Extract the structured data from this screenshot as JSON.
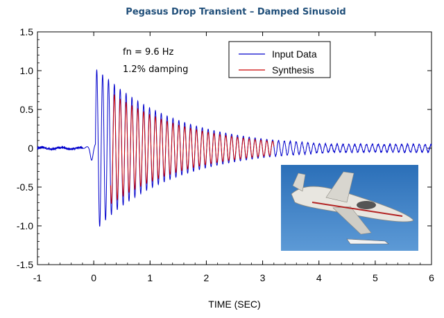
{
  "chart_data": {
    "type": "line",
    "title": "Pegasus Drop Transient – Damped Sinusoid",
    "xlabel": "TIME (SEC)",
    "ylabel": "",
    "xlim": [
      -1,
      6
    ],
    "ylim": [
      -1.5,
      1.5
    ],
    "x_ticks": [
      "-1",
      "0",
      "1",
      "2",
      "3",
      "4",
      "5",
      "6"
    ],
    "y_ticks": [
      "1.5",
      "1.0",
      "0.5",
      "0",
      "-0.5",
      "-1.0",
      "-1.5"
    ],
    "annotations": [
      "fn = 9.6 Hz",
      "1.2% damping"
    ],
    "series": [
      {
        "name": "Input Data",
        "color": "#0000cc",
        "description": "Measured drop transient: small noise before t=0, peak ~1.02 at t~0.1 s, min ~-1.08, decaying oscillation visible to t=6 s with residual amplitude ~0.05",
        "noise_level": 0.015,
        "peak": 1.02,
        "trough": -1.08,
        "residual_amplitude": 0.05
      },
      {
        "name": "Synthesis",
        "color": "#cc0000",
        "frequency_hz": 9.6,
        "damping_ratio": 0.012,
        "start_time": 0.3,
        "end_time": 3.2,
        "initial_amplitude": 0.72
      }
    ],
    "legend": {
      "position": "top-right",
      "entries": [
        "Input Data",
        "Synthesis"
      ]
    },
    "inset_image": {
      "subject": "airplane carrying pegasus rocket"
    }
  }
}
